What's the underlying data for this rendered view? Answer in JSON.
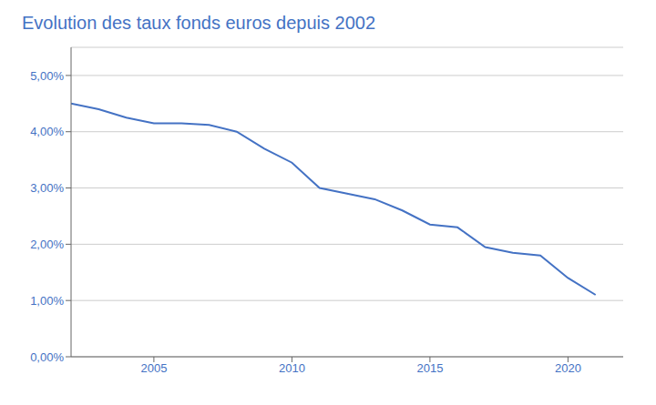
{
  "chart_data": {
    "type": "line",
    "title": "Evolution des taux fonds euros depuis 2002",
    "color": "#4472c4",
    "x": [
      2002,
      2003,
      2004,
      2005,
      2006,
      2007,
      2008,
      2009,
      2010,
      2011,
      2012,
      2013,
      2014,
      2015,
      2016,
      2017,
      2018,
      2019,
      2020,
      2021
    ],
    "values": [
      0.045,
      0.044,
      0.0425,
      0.0415,
      0.0415,
      0.0412,
      0.04,
      0.037,
      0.0345,
      0.03,
      0.029,
      0.028,
      0.026,
      0.0235,
      0.023,
      0.0195,
      0.0185,
      0.018,
      0.014,
      0.011
    ],
    "xlim": [
      2002,
      2022
    ],
    "ylim": [
      0.0,
      0.055
    ],
    "xticks": [
      2005,
      2010,
      2015,
      2020
    ],
    "yticks": [
      {
        "value": 0.0,
        "label": "0,00%"
      },
      {
        "value": 0.01,
        "label": "1,00%"
      },
      {
        "value": 0.02,
        "label": "2,00%"
      },
      {
        "value": 0.03,
        "label": "3,00%"
      },
      {
        "value": 0.04,
        "label": "4,00%"
      },
      {
        "value": 0.05,
        "label": "5,00%"
      }
    ],
    "grid": "y"
  }
}
